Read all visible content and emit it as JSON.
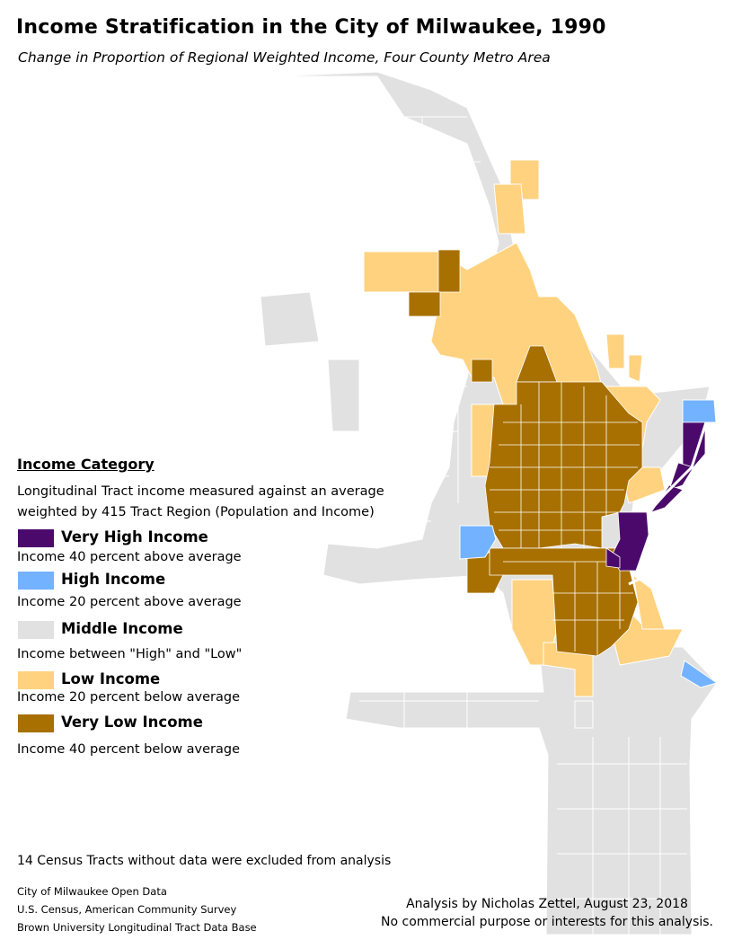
{
  "title": "Income Stratification in the City of Milwaukee, 1990",
  "subtitle": "Change in Proportion of Regional Weighted Income, Four County Metro Area",
  "legend": {
    "heading": "Income Category",
    "description_line1": "Longitudinal Tract income measured against an average",
    "description_line2": "weighted by 415 Tract Region (Population and Income)",
    "categories": [
      {
        "name": "Very High Income",
        "desc": "Income 40 percent above average",
        "color": "#4b0a6b"
      },
      {
        "name": "High Income",
        "desc": "Income 20 percent above average",
        "color": "#73b2ff"
      },
      {
        "name": "Middle Income",
        "desc": "Income between \"High\" and \"Low\"",
        "color": "#e1e1e1"
      },
      {
        "name": "Low Income",
        "desc": "Income 20 percent below average",
        "color": "#ffd27f"
      },
      {
        "name": "Very Low Income",
        "desc": "Income 40 percent below average",
        "color": "#a87000"
      }
    ]
  },
  "note": "14 Census Tracts without data were excluded from analysis",
  "sources": [
    "City of Milwaukee Open Data",
    "U.S. Census, American Community Survey",
    "Brown University Longitudinal Tract Data Base"
  ],
  "credit": {
    "line1": "Analysis by Nicholas Zettel, August 23, 2018",
    "line2": "No commercial purpose or interests for this analysis."
  }
}
